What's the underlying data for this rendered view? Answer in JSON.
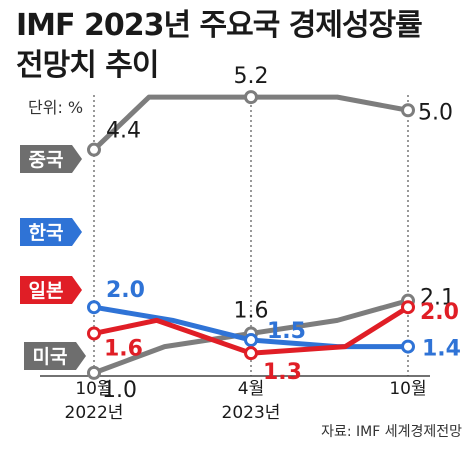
{
  "title_line1": "IMF 2023년 주요국 경제성장률",
  "title_line2": "전망치 추이",
  "unit_label": "단위: %",
  "source": "자료: IMF 세계경제전망",
  "chart_data": {
    "type": "line",
    "x_ticks": [
      {
        "month": "10월",
        "year": "2022년"
      },
      {
        "month": "4월",
        "year": "2023년"
      },
      {
        "month": "10월",
        "year": ""
      }
    ],
    "ylim": [
      0.8,
      5.4
    ],
    "grid": false,
    "series": [
      {
        "name": "중국",
        "color": "#7d7d7d",
        "label_color": "#1a1a1a",
        "label_bg": "#6e6e6e",
        "points": [
          [
            0,
            4.4
          ],
          [
            0.35,
            5.2
          ],
          [
            1.0,
            5.2
          ],
          [
            1.55,
            5.2
          ],
          [
            2.0,
            5.0
          ]
        ],
        "labels": [
          {
            "text": "4.4",
            "index": 0
          },
          {
            "text": "5.2",
            "index": 2
          },
          {
            "text": "5.0",
            "index": 4
          }
        ]
      },
      {
        "name": "미국",
        "color": "#7d7d7d",
        "label_color": "#1a1a1a",
        "label_bg": "#6e6e6e",
        "points": [
          [
            0,
            1.0
          ],
          [
            0.45,
            1.4
          ],
          [
            1.0,
            1.6
          ],
          [
            1.55,
            1.8
          ],
          [
            2.0,
            2.1
          ]
        ],
        "labels": [
          {
            "text": "1.0",
            "index": 0
          },
          {
            "text": "1.6",
            "index": 2
          },
          {
            "text": "2.1",
            "index": 4
          }
        ]
      },
      {
        "name": "한국",
        "color": "#2f73d6",
        "label_color": "#2f73d6",
        "label_bg": "#2f73d6",
        "points": [
          [
            0,
            2.0
          ],
          [
            0.5,
            1.8
          ],
          [
            1.0,
            1.5
          ],
          [
            1.55,
            1.4
          ],
          [
            2.0,
            1.4
          ]
        ],
        "labels": [
          {
            "text": "2.0",
            "index": 0
          },
          {
            "text": "1.5",
            "index": 2
          },
          {
            "text": "1.4",
            "index": 4
          }
        ]
      },
      {
        "name": "일본",
        "color": "#e01e26",
        "label_color": "#e01e26",
        "label_bg": "#e01e26",
        "points": [
          [
            0,
            1.6
          ],
          [
            0.4,
            1.8
          ],
          [
            1.0,
            1.3
          ],
          [
            1.6,
            1.4
          ],
          [
            2.0,
            2.0
          ]
        ],
        "labels": [
          {
            "text": "1.6",
            "index": 0
          },
          {
            "text": "1.3",
            "index": 2
          },
          {
            "text": "2.0",
            "index": 4
          }
        ]
      }
    ]
  }
}
